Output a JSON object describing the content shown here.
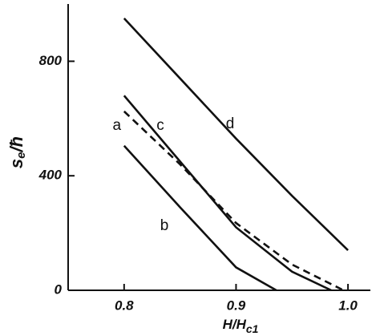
{
  "chart_data": {
    "type": "line",
    "ylabel": {
      "main": "s",
      "sub": "e",
      "rest": "/ħ"
    },
    "xlabel": {
      "main": "H/H",
      "sub": "c1"
    },
    "xlim": [
      0.75,
      1.02
    ],
    "ylim": [
      0,
      1000
    ],
    "xticks": [
      0.8,
      0.9,
      {
        "value": 1,
        "label": "1.0"
      }
    ],
    "yticks": [
      0,
      400,
      800
    ],
    "series": [
      {
        "name": "a",
        "color": "#111",
        "dashed": true,
        "x": [
          0.8,
          0.85,
          0.9,
          0.95,
          0.996
        ],
        "values": [
          625,
          440,
          235,
          90,
          0
        ]
      },
      {
        "name": "b",
        "color": "#111",
        "dashed": false,
        "x": [
          0.8,
          0.85,
          0.9,
          0.936
        ],
        "values": [
          505,
          290,
          80,
          0
        ]
      },
      {
        "name": "c",
        "color": "#111",
        "dashed": false,
        "x": [
          0.8,
          0.85,
          0.9,
          0.95,
          0.985
        ],
        "values": [
          680,
          450,
          220,
          65,
          0
        ]
      },
      {
        "name": "d",
        "color": "#111",
        "dashed": false,
        "x": [
          0.8,
          0.85,
          0.9,
          0.95,
          1.0
        ],
        "values": [
          950,
          740,
          530,
          330,
          140
        ]
      }
    ]
  }
}
